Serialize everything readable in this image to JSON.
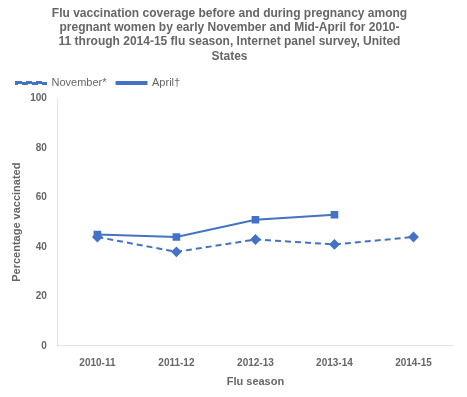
{
  "chart_data": {
    "type": "line",
    "title": "Flu vaccination coverage before and during pregnancy among\npregnant women by early November and Mid-April for 2010-\n11 through 2014-15 flu season, Internet panel survey, United\nStates",
    "xlabel": "Flu season",
    "ylabel": "Percentage vaccinated",
    "categories": [
      "2010-11",
      "2011-12",
      "2012-13",
      "2013-14",
      "2014-15"
    ],
    "series": [
      {
        "name": "November*",
        "color": "#4472C4",
        "values": [
          44,
          38,
          43,
          41,
          44
        ],
        "marker": "diamond",
        "line_style": "dashed"
      },
      {
        "name": "April†",
        "color": "#4472C4",
        "values": [
          45,
          44,
          51,
          53,
          null
        ],
        "marker": "square",
        "line_style": "solid"
      }
    ],
    "ylim": [
      0,
      100
    ],
    "yticks": [
      0,
      20,
      40,
      60,
      80,
      100
    ],
    "grid": false,
    "legend": "top"
  }
}
